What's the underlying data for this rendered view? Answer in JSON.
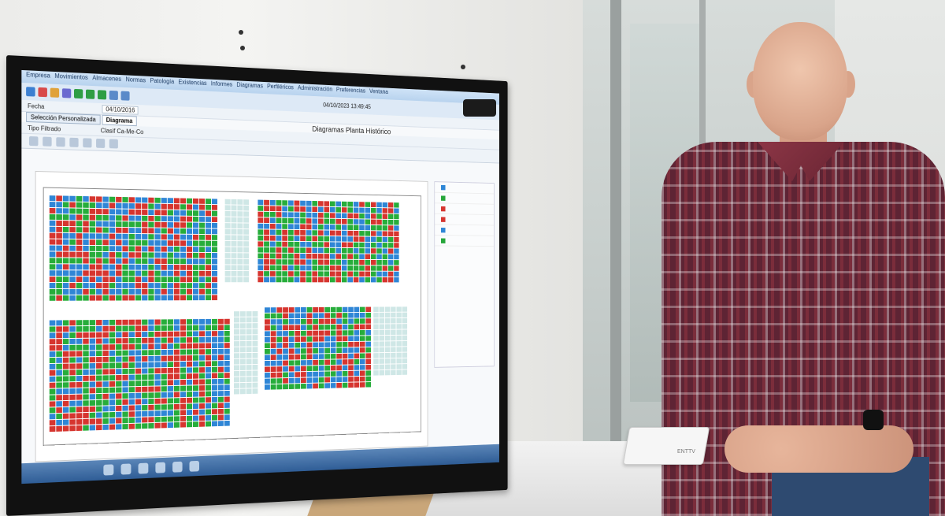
{
  "app": {
    "menu": [
      "Empresa",
      "Movimientos",
      "Almacenes",
      "Normas",
      "Patología",
      "Existencias",
      "Informes",
      "Diagramas",
      "Perfiléricos",
      "Administración",
      "Preferencias",
      "Ventana"
    ],
    "datetime": "04/10/2023 13:49:45",
    "window_title": "Diagramas Planta Histórico",
    "form": {
      "fecha_label": "Fecha",
      "fecha_value": "04/10/2016",
      "tipo_filtrado_label": "Tipo Filtrado",
      "tipo_filtrado_value": "Clasif Ca-Me-Co"
    },
    "tabs": [
      "Selección Personalizada",
      "Diagrama"
    ],
    "legend_colors": [
      "#2f86d6",
      "#26a63a",
      "#d6352f",
      "#d6352f",
      "#2f86d6",
      "#26a63a"
    ],
    "cell_colors": {
      "red": "#d6352f",
      "green": "#27ad3b",
      "blue": "#2f86d6",
      "light": "#cfe7e6"
    }
  },
  "device_label": "ENTTV"
}
